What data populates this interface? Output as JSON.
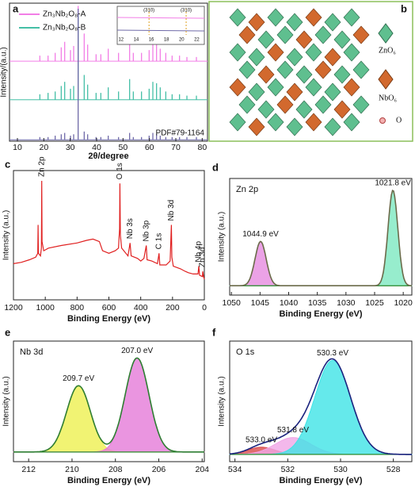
{
  "chart_data": [
    {
      "type": "stick",
      "label": "a",
      "xlabel": "2θ/degree",
      "ylabel": "Intensity/(a.u.)",
      "x": [
        18.5,
        21.6,
        24.3,
        26.6,
        27.9,
        30.1,
        31.3,
        33.0,
        35.3,
        36.6,
        39.8,
        41.6,
        44.4,
        48.3,
        52.5,
        53.9,
        57.0,
        59.9,
        61.3,
        62.7,
        64.1,
        66.2,
        68.6,
        71.4,
        74.2,
        77.8
      ],
      "series": [
        {
          "name": "Zn₃Nb₂O₈-A",
          "color": "#f27ee6",
          "baseline": 58,
          "values": [
            4,
            4,
            6,
            10,
            14,
            8,
            11,
            40,
            20,
            12,
            5,
            5,
            9,
            6,
            16,
            6,
            6,
            8,
            14,
            12,
            9,
            6,
            4,
            4,
            3,
            3
          ]
        },
        {
          "name": "Zn₃Nb₂O₈-B",
          "color": "#45bfa6",
          "baseline": 30,
          "values": [
            4,
            5,
            6,
            10,
            13,
            8,
            10,
            62,
            18,
            11,
            5,
            5,
            9,
            6,
            15,
            6,
            6,
            8,
            13,
            12,
            9,
            6,
            4,
            4,
            3,
            3
          ]
        }
      ],
      "reference": {
        "name": "PDF#79-1164",
        "color": "#6f6aa8",
        "baseline": 1,
        "values": [
          2,
          2,
          3,
          4,
          5,
          3,
          4,
          95,
          6,
          4,
          2,
          2,
          3,
          2,
          5,
          2,
          2,
          3,
          5,
          4,
          3,
          2,
          2,
          2,
          2,
          2
        ]
      },
      "xlim": [
        7,
        82
      ],
      "xticks": [
        10,
        20,
        30,
        40,
        50,
        60,
        70,
        80
      ],
      "ylim": [
        0,
        100
      ],
      "inset": {
        "xlim": [
          11.5,
          23
        ],
        "xticks": [
          12,
          14,
          16,
          18,
          20,
          22
        ],
        "annotations": [
          {
            "label": "(310)",
            "x": 15.7
          },
          {
            "label": "(310)",
            "x": 20.6
          }
        ]
      }
    },
    {
      "type": "line",
      "label": "c",
      "xlabel": "Binding Energy (eV)",
      "ylabel": "Intensity (a.u.)",
      "color": "#e02020",
      "x": [
        1200,
        1150,
        1100,
        1060,
        1047,
        1045,
        1043,
        1030,
        1024,
        1022,
        1020,
        1010,
        980,
        900,
        800,
        740,
        700,
        660,
        640,
        600,
        560,
        540,
        533,
        531,
        528,
        520,
        480,
        467,
        460,
        420,
        400,
        380,
        365,
        360,
        330,
        295,
        285,
        280,
        240,
        215,
        207,
        204,
        195,
        150,
        120,
        100,
        70,
        40,
        35,
        30,
        12,
        10,
        5,
        0
      ],
      "values": [
        28,
        29,
        31,
        33,
        36,
        58,
        36,
        34,
        40,
        92,
        45,
        38,
        40,
        42,
        44,
        46,
        47,
        45,
        38,
        36,
        38,
        40,
        55,
        90,
        50,
        40,
        34,
        44,
        34,
        32,
        30,
        32,
        42,
        31,
        30,
        28,
        36,
        27,
        27,
        30,
        58,
        33,
        26,
        24,
        22,
        21,
        20,
        20,
        26,
        19,
        18,
        22,
        18,
        16
      ],
      "xlim": [
        1200,
        0
      ],
      "xticks": [
        1200,
        1000,
        800,
        600,
        400,
        200,
        0
      ],
      "ylim": [
        0,
        100
      ],
      "peak_labels": [
        {
          "label": "Zn 2p",
          "x": 1022
        },
        {
          "label": "O 1s",
          "x": 531
        },
        {
          "label": "Nb 3s",
          "x": 467
        },
        {
          "label": "Nb 3p",
          "x": 365
        },
        {
          "label": "C 1s",
          "x": 285
        },
        {
          "label": "Nb 3d",
          "x": 207
        },
        {
          "label": "Nb 4p",
          "x": 35
        },
        {
          "label": "Zn 3d",
          "x": 10
        }
      ]
    },
    {
      "type": "peakfit",
      "label": "d",
      "title": "Zn 2p",
      "xlabel": "Binding Energy (eV)",
      "ylabel": "Intensity (a.u.)",
      "xlim": [
        1050.3,
        1018.5
      ],
      "xticks": [
        1050,
        1045,
        1040,
        1035,
        1030,
        1025,
        1020
      ],
      "ylim": [
        0,
        100
      ],
      "baseline": 8,
      "baseline_color": "#2e8b2e",
      "envelope_color": "#6b6b4a",
      "peaks": [
        {
          "center": 1044.9,
          "height": 38,
          "width": 2.3,
          "color": "#e68be0",
          "label": "1044.9 eV"
        },
        {
          "center": 1021.8,
          "height": 82,
          "width": 2.0,
          "color": "#7de8c0",
          "label": "1021.8 eV"
        }
      ]
    },
    {
      "type": "peakfit",
      "label": "e",
      "title": "Nb 3d",
      "xlabel": "Binding Energy (eV)",
      "ylabel": "Intensity (a.u.)",
      "xlim": [
        212.7,
        203.9
      ],
      "xticks": [
        212,
        210,
        208,
        206,
        204
      ],
      "ylim": [
        0,
        100
      ],
      "baseline": 8,
      "baseline_color": "#2e8b2e",
      "envelope_color": "#2e7d32",
      "peaks": [
        {
          "center": 209.7,
          "height": 55,
          "width": 1.3,
          "color": "#eef050",
          "label": "209.7 eV"
        },
        {
          "center": 207.0,
          "height": 78,
          "width": 1.3,
          "color": "#e57ad8",
          "label": "207.0 eV"
        }
      ]
    },
    {
      "type": "peakfit",
      "label": "f",
      "title": "O 1s",
      "xlabel": "Binding Energy (eV)",
      "ylabel": "Intensity (a.u.)",
      "xlim": [
        534.2,
        527.3
      ],
      "xticks": [
        534,
        532,
        530,
        528
      ],
      "ylim": [
        0,
        100
      ],
      "baseline": 6,
      "baseline_color": "#2e8b2e",
      "envelope_color": "#1a237e",
      "peaks": [
        {
          "center": 533.0,
          "height": 6,
          "width": 1.2,
          "color": "#d94a4a",
          "label": "533.0 eV"
        },
        {
          "center": 531.8,
          "height": 14,
          "width": 1.6,
          "color": "#f0a6e6",
          "label": "531.8 eV"
        },
        {
          "center": 530.3,
          "height": 78,
          "width": 1.6,
          "color": "#3fe3e6",
          "label": "530.3 eV"
        }
      ]
    }
  ],
  "structure": {
    "label": "b",
    "legend": [
      {
        "label": "ZnO₆"
      },
      {
        "label": "NbO₆"
      },
      {
        "label": "O"
      }
    ]
  }
}
